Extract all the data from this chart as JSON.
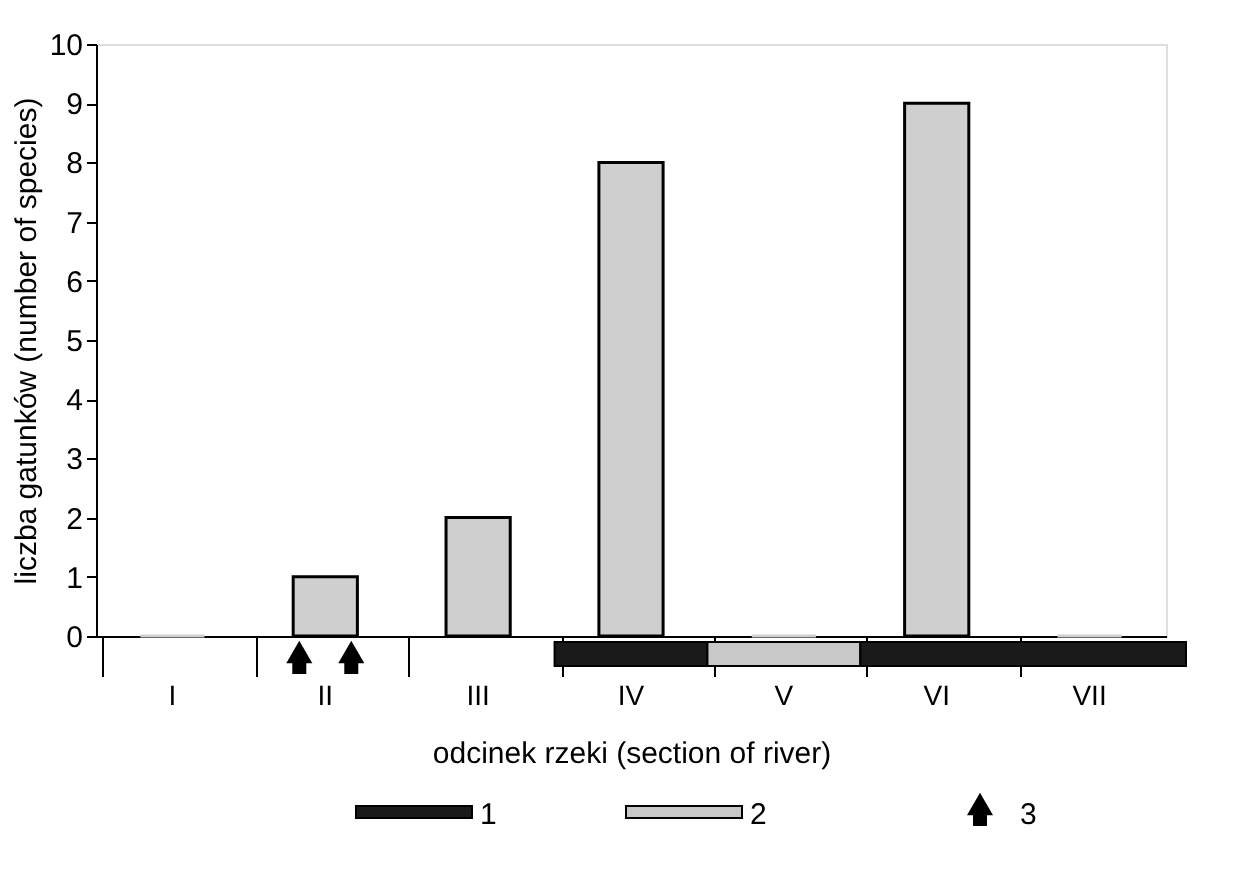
{
  "chart_data": {
    "type": "bar",
    "xlabel": "odcinek rzeki (section of river)",
    "ylabel": "liczba gatunków (number of species)",
    "categories": [
      "I",
      "II",
      "III",
      "IV",
      "V",
      "VI",
      "VII"
    ],
    "values": [
      0,
      1,
      2,
      8,
      0,
      9,
      0
    ],
    "color": "#cfcfcf",
    "ylim": [
      0,
      10
    ],
    "yticks": [
      0,
      1,
      2,
      3,
      4,
      5,
      6,
      7,
      8,
      9,
      10
    ],
    "grid": false,
    "annotations": [
      "1",
      "2",
      "3"
    ]
  }
}
